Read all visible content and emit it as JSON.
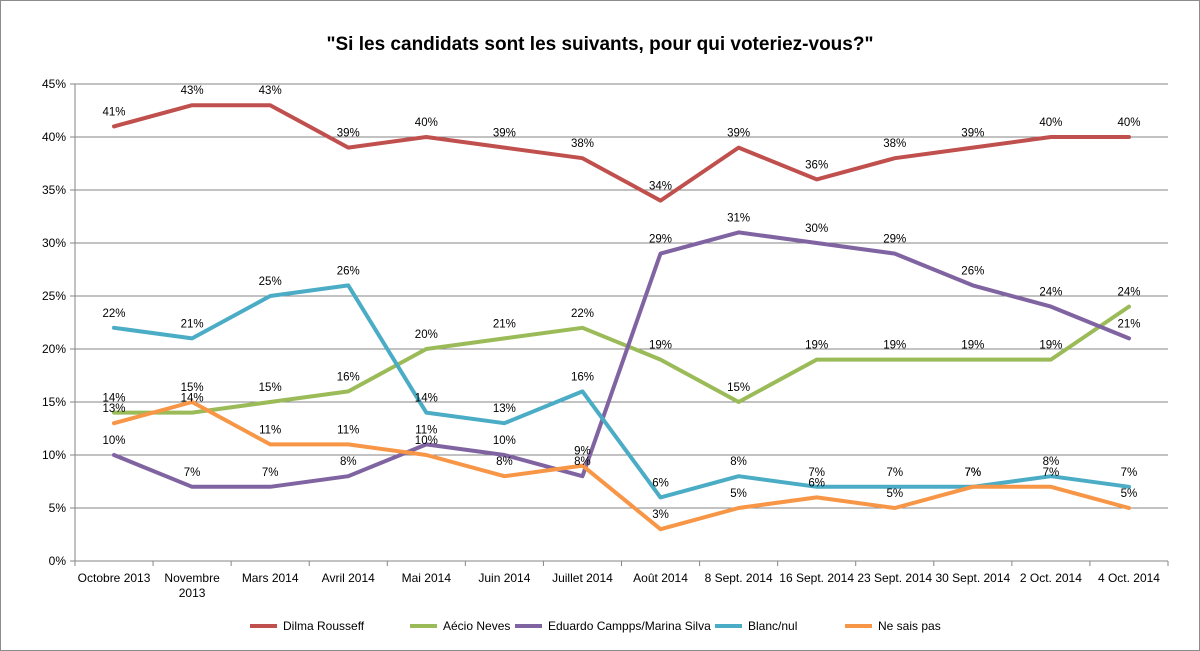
{
  "chart_data": {
    "type": "line",
    "title": "\"Si les candidats sont les suivants, pour qui voteriez-vous?\"",
    "categories": [
      "Octobre 2013",
      "Novembre 2013",
      "Mars 2014",
      "Avril 2014",
      "Mai 2014",
      "Juin 2014",
      "Juillet 2014",
      "Août 2014",
      "8 Sept. 2014",
      "16 Sept. 2014",
      "23 Sept. 2014",
      "30 Sept. 2014",
      "2 Oct. 2014",
      "4 Oct. 2014"
    ],
    "y_ticks": [
      "0%",
      "5%",
      "10%",
      "15%",
      "20%",
      "25%",
      "30%",
      "35%",
      "40%",
      "45%"
    ],
    "ylim": [
      0,
      45
    ],
    "grid": true,
    "legend_position": "bottom",
    "series": [
      {
        "name": "Dilma Rousseff",
        "color": "#c0504d",
        "values": [
          41,
          43,
          43,
          39,
          40,
          39,
          38,
          34,
          39,
          36,
          38,
          39,
          40,
          40
        ]
      },
      {
        "name": "Aécio Neves",
        "color": "#9bbb59",
        "values": [
          14,
          14,
          15,
          16,
          20,
          21,
          22,
          19,
          15,
          19,
          19,
          19,
          19,
          24
        ]
      },
      {
        "name": "Eduardo Campps/Marina Silva",
        "color": "#8064a2",
        "values": [
          10,
          7,
          7,
          8,
          11,
          10,
          8,
          29,
          31,
          30,
          29,
          26,
          24,
          21
        ]
      },
      {
        "name": "Blanc/nul",
        "color": "#4bacc6",
        "values": [
          22,
          21,
          25,
          26,
          14,
          13,
          16,
          6,
          8,
          7,
          7,
          7,
          8,
          7
        ]
      },
      {
        "name": "Ne sais pas",
        "color": "#f79646",
        "values": [
          13,
          15,
          11,
          11,
          10,
          8,
          9,
          3,
          5,
          6,
          5,
          7,
          7,
          5
        ]
      }
    ],
    "data_labels": [
      [
        "41%",
        "43%",
        "43%",
        "39%",
        "40%",
        "39%",
        "38%",
        "34%",
        "39%",
        "36%",
        "38%",
        "39%",
        "40%",
        "40%"
      ],
      [
        "14%",
        "14%",
        "15%",
        "16%",
        "20%",
        "21%",
        "22%",
        "19%",
        "15%",
        "19%",
        "19%",
        "19%",
        "19%",
        "24%"
      ],
      [
        "10%",
        "7%",
        "7%",
        "8%",
        "11%",
        "10%",
        "8%",
        "29%",
        "31%",
        "30%",
        "29%",
        "26%",
        "24%",
        "21%"
      ],
      [
        "22%",
        "21%",
        "25%",
        "26%",
        "14%",
        "13%",
        "16%",
        "6%",
        "8%",
        "7%",
        "7%",
        "7%",
        "8%",
        "7%"
      ],
      [
        "13%",
        "15%",
        "11%",
        "11%",
        "10%",
        "8%",
        "9%",
        "3%",
        "5%",
        "6%",
        "5%",
        "7%",
        "7%",
        "5%"
      ]
    ]
  }
}
